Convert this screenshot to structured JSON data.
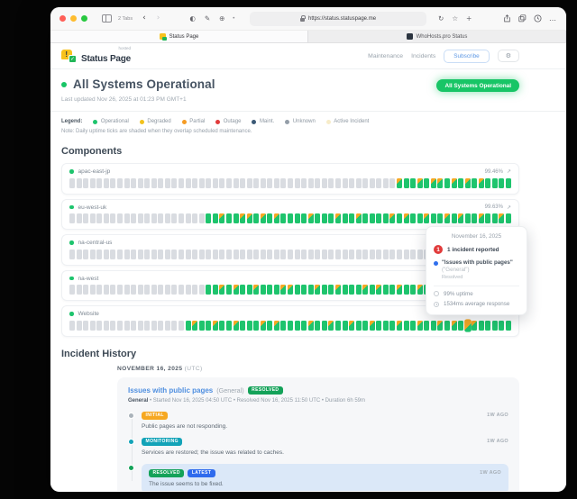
{
  "colors": {
    "accent_green": "#1ec46d",
    "tick_unknown": "#d9dce1",
    "tick_maintenance_shade": "#f6a823",
    "pill_green": "#18c566",
    "link_blue": "#4f8fe0",
    "highlight_update_bg": "#dbe8f8",
    "incident_red": "#e13b3b"
  },
  "icons": {
    "back": "‹",
    "forward": "›",
    "privacy": "◐",
    "marker": "✎",
    "extension": "⊕",
    "ext_dot": "•",
    "refresh": "↻",
    "star": "☆",
    "new_tab": "+",
    "more": "…",
    "gear": "⚙",
    "expand": "↗",
    "logo_exclaim": "!",
    "logo_check": "✓"
  },
  "browser": {
    "tabs_count_label": "2 Tabs",
    "url": "https://status.statuspage.me",
    "tabs": [
      {
        "title": "Status Page"
      },
      {
        "title": "WhoHosts.pro Status"
      }
    ]
  },
  "header": {
    "brand": "Status Page",
    "brand_tag": "hosted",
    "nav": [
      "Maintenance",
      "Incidents"
    ],
    "subscribe_label": "Subscribe"
  },
  "status": {
    "title": "All Systems Operational",
    "updated": "Last updated Nov 26, 2025 at 01:23 PM GMT+1",
    "badge": "All Systems Operational"
  },
  "legend": {
    "label": "Legend:",
    "items": [
      {
        "label": "Operational",
        "color": "#1ec46d"
      },
      {
        "label": "Degraded",
        "color": "#f2c21d"
      },
      {
        "label": "Partial",
        "color": "#f59b23"
      },
      {
        "label": "Outage",
        "color": "#e13b3b"
      },
      {
        "label": "Maint.",
        "color": "#3b5976"
      },
      {
        "label": "Unknown",
        "color": "#949ea8"
      },
      {
        "label": "Active Incident",
        "color": "#f7ecc9"
      }
    ],
    "note": "Note: Daily uptime ticks are shaded when they overlap scheduled maintenance."
  },
  "components": {
    "title": "Components",
    "rows": [
      {
        "name": "apac-east-jp",
        "uptime": "99.46%",
        "ticks": "uuuuuuuuuuuuuuuuuuuuuuuuuuuuuuuuuuuuuuuuuuuuuuuumggmgmmgmgmgmgggg"
      },
      {
        "name": "eu-west-uk",
        "uptime": "99.63%",
        "ticks": "uuuuuuuuuuuuuuuuuuuuggmggmmgmgmggggmgggmggmggggmgmggmggmgmggmggmg"
      },
      {
        "name": "na-central-us",
        "uptime": "",
        "ticks": "uuuuuuuuuuuuuuuuuuuuuuuuuuuuuuuuuuuuuuuuuuuuuuuuuuuuuuuuuuuuggggg"
      },
      {
        "name": "na-west",
        "uptime": "",
        "ticks": "uuuuuuuuuuuuuuuuuuuuggmgmggmgggmmgggmggmgggmgmggmggmgggmggmggmggg"
      },
      {
        "name": "Website",
        "uptime": "",
        "ticks": "uuuuuuuuuuuuuuuuugmggmggmgggmgmggggmggmggmggmgggmggmggmgmghmggggg"
      }
    ]
  },
  "tooltip": {
    "date": "November 16, 2025",
    "count": "1",
    "count_text": "1 incident reported",
    "incident_title": "\"Issues with public pages\"",
    "incident_scope": " (\"General\")",
    "incident_status": "Resolved",
    "uptime_text": "99% uptime",
    "response_text": "1534ms average response"
  },
  "incident_history": {
    "title": "Incident History",
    "date_heading": "NOVEMBER 16, 2025",
    "date_suffix": " (UTC)",
    "incident": {
      "title": "Issues with public pages",
      "scope": "(General)",
      "status_badge": {
        "label": "RESOLVED",
        "color": "#14a259"
      },
      "meta_prefix": "General",
      "meta": " • Started Nov 16, 2025 04:50 UTC • Resolved Nov 16, 2025 11:50 UTC • Duration 6h 59m",
      "updates": [
        {
          "badges": [
            {
              "label": "INITIAL",
              "color": "#f6a821"
            }
          ],
          "dot": "#aab3bb",
          "time": "1W AGO",
          "highlight": false,
          "text": "Public pages are not responding."
        },
        {
          "badges": [
            {
              "label": "MONITORING",
              "color": "#13a3b8"
            }
          ],
          "dot": "#13a3b8",
          "time": "1W AGO",
          "highlight": false,
          "text": "Services are restored; the issue was related to caches."
        },
        {
          "badges": [
            {
              "label": "RESOLVED",
              "color": "#14a259"
            },
            {
              "label": "LATEST",
              "color": "#2f6bed"
            }
          ],
          "dot": "#14a259",
          "time": "1W AGO",
          "highlight": true,
          "text": "The issue seems to be fixed."
        }
      ]
    }
  }
}
